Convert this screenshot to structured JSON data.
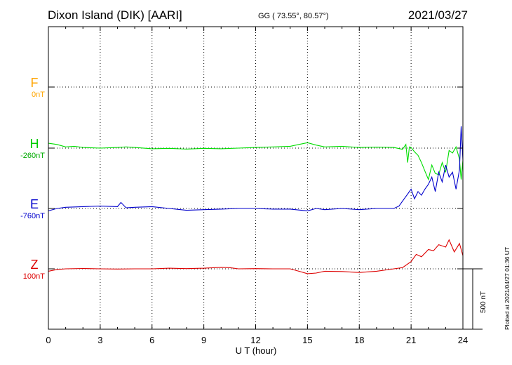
{
  "header": {
    "station": "Dixon Island (DIK)  [AARI]",
    "coords": "GG ( 73.55°,  80.57°)",
    "date": "2021/03/27"
  },
  "plotted_note": "Plotted at 2021/04/27 01:36 UT",
  "scale_label": "500 nT",
  "colors": {
    "F": "#ffa500",
    "H": "#00dd00",
    "E": "#0000cc",
    "Z": "#dd0000"
  },
  "chart_data": {
    "type": "line",
    "xlabel": "U T (hour)",
    "xlim": [
      0,
      24
    ],
    "xticks": [
      "0",
      "3",
      "6",
      "9",
      "12",
      "15",
      "18",
      "21",
      "24"
    ],
    "grid": true,
    "components": [
      {
        "name": "F",
        "baseline_label": "0nT",
        "color": "#ffa500",
        "baseline": 0,
        "values": []
      },
      {
        "name": "H",
        "baseline_label": "-260nT",
        "color": "#00dd00",
        "baseline": -260,
        "x": [
          0,
          0.5,
          1,
          1.5,
          2,
          3,
          4,
          4.5,
          5,
          6,
          7,
          8,
          9,
          10,
          11,
          12,
          13,
          14,
          14.5,
          15,
          15.5,
          16,
          17,
          17.5,
          18,
          19,
          20,
          20.5,
          20.7,
          20.8,
          20.9,
          21,
          21.2,
          21.4,
          21.6,
          21.8,
          22,
          22.2,
          22.4,
          22.6,
          22.8,
          23,
          23.2,
          23.4,
          23.6,
          23.8,
          23.9,
          24
        ],
        "values": [
          -220,
          -230,
          -250,
          -245,
          -255,
          -260,
          -255,
          -250,
          -255,
          -265,
          -262,
          -268,
          -262,
          -265,
          -260,
          -255,
          -250,
          -245,
          -230,
          -215,
          -235,
          -250,
          -245,
          -250,
          -255,
          -252,
          -255,
          -270,
          -230,
          -380,
          -250,
          -255,
          -290,
          -320,
          -380,
          -450,
          -520,
          -400,
          -470,
          -480,
          -380,
          -460,
          -280,
          -300,
          -250,
          -350,
          -520,
          -360
        ]
      },
      {
        "name": "E",
        "baseline_label": "-760nT",
        "color": "#0000cc",
        "baseline": -760,
        "x": [
          0,
          0.5,
          1,
          2,
          3,
          4,
          4.2,
          4.5,
          5,
          6,
          7,
          8,
          9,
          10,
          11,
          12,
          13,
          14,
          15,
          15.5,
          16,
          17,
          18,
          19,
          20,
          20.3,
          20.5,
          20.8,
          21,
          21.2,
          21.4,
          21.6,
          21.8,
          22,
          22.2,
          22.4,
          22.6,
          22.8,
          23,
          23.2,
          23.4,
          23.6,
          23.8,
          23.9,
          24
        ],
        "values": [
          -780,
          -760,
          -750,
          -745,
          -740,
          -745,
          -710,
          -755,
          -750,
          -745,
          -760,
          -775,
          -770,
          -765,
          -760,
          -760,
          -765,
          -765,
          -780,
          -760,
          -770,
          -760,
          -770,
          -760,
          -760,
          -740,
          -700,
          -640,
          -600,
          -680,
          -620,
          -650,
          -600,
          -560,
          -500,
          -620,
          -460,
          -540,
          -400,
          -500,
          -460,
          -600,
          -440,
          -80,
          -360
        ]
      },
      {
        "name": "Z",
        "baseline_label": "100nT",
        "color": "#dd0000",
        "baseline": 100,
        "x": [
          0,
          0.5,
          1,
          2,
          3,
          4,
          5,
          6,
          7,
          8,
          9,
          10,
          10.5,
          11,
          12,
          13,
          14,
          14.5,
          15,
          15.5,
          16,
          17,
          18,
          19,
          20,
          20.5,
          21,
          21.3,
          21.6,
          22,
          22.3,
          22.6,
          23,
          23.2,
          23.5,
          23.8,
          24
        ],
        "values": [
          80,
          95,
          100,
          103,
          100,
          98,
          100,
          100,
          105,
          102,
          105,
          112,
          110,
          100,
          102,
          100,
          100,
          80,
          60,
          65,
          80,
          78,
          70,
          80,
          100,
          110,
          160,
          220,
          200,
          260,
          250,
          300,
          280,
          340,
          240,
          310,
          210
        ]
      }
    ]
  }
}
